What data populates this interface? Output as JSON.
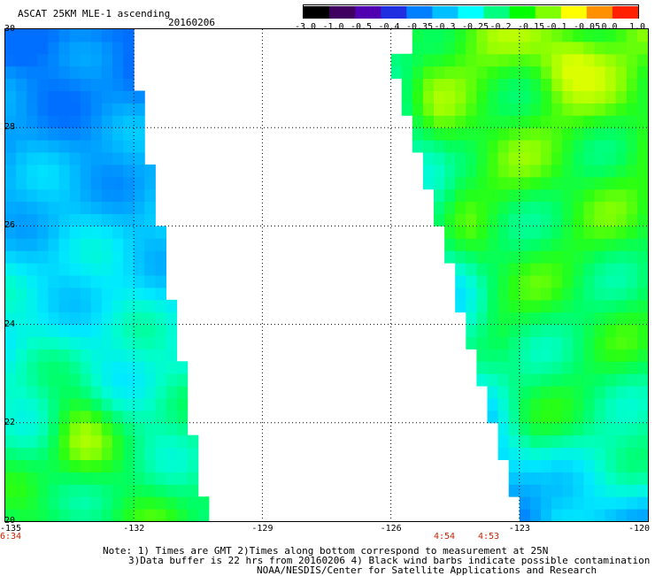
{
  "header": {
    "title": "ASCAT 25KM MLE-1 ascending",
    "date": "20160206"
  },
  "colorbar": {
    "labels": [
      "-3.0",
      "-1.0",
      "-0.5",
      "-0.4",
      "-0.35",
      "-0.3",
      "-0.25",
      "-0.2",
      "-0.15",
      "-0.1",
      "-0.05",
      "0.0",
      "1.0"
    ],
    "colors": [
      "#000000",
      "#400060",
      "#5000b0",
      "#2030e0",
      "#0080ff",
      "#00c0ff",
      "#00ffff",
      "#00ff80",
      "#00ff00",
      "#80ff00",
      "#ffff00",
      "#ff9000",
      "#ff2000"
    ]
  },
  "map": {
    "lat_labels": [
      "30",
      "28",
      "26",
      "24",
      "22",
      "20"
    ],
    "lon_labels": [
      "-135",
      "-132",
      "-129",
      "-126",
      "-123",
      "-120"
    ],
    "lat_range": [
      20,
      30
    ],
    "lon_range": [
      -135,
      -120
    ],
    "times": [
      {
        "label": "6:34"
      },
      {
        "label": "4:54"
      },
      {
        "label": "4:53"
      }
    ]
  },
  "footer": {
    "note_line1": "Note: 1) Times are GMT 2)Times along bottom correspond to measurement at 25N",
    "note_line2": "3)Data buffer is 22 hrs from 20160206 4) Black wind barbs indicate possible contamination",
    "credit": "NOAA/NESDIS/Center for Satellite Applications and Research"
  }
}
